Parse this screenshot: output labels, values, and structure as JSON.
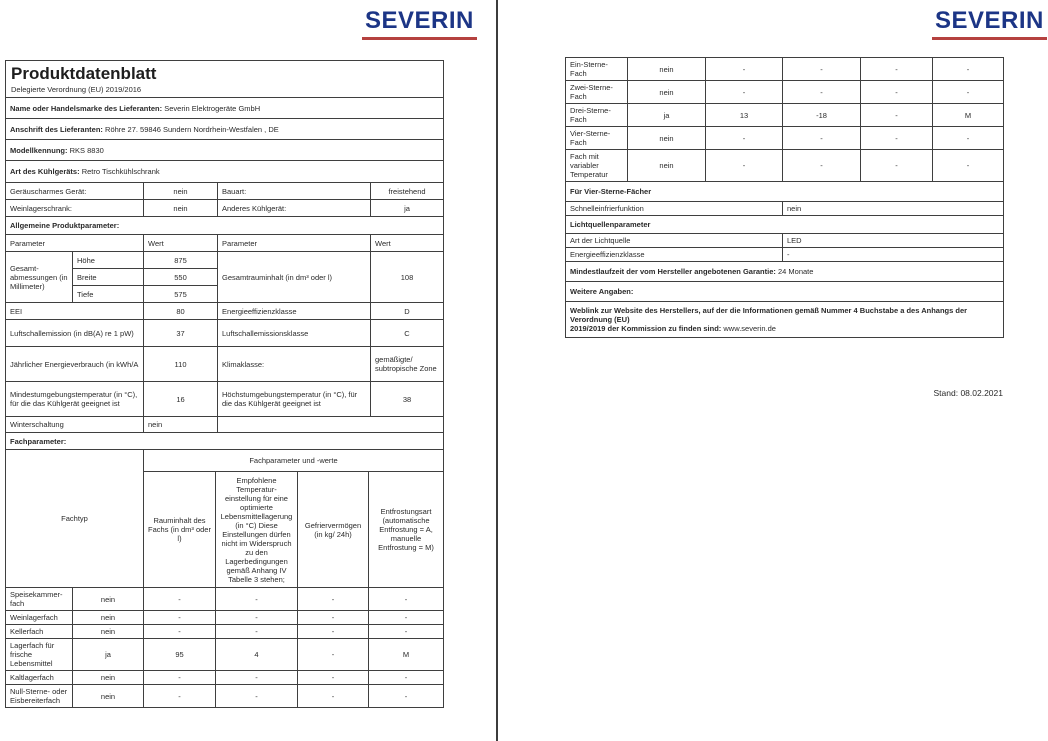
{
  "brand": {
    "logo_text": "SEVERIN",
    "logo_color": "#1c3586",
    "underline_color": "#b5413f"
  },
  "page_left": {
    "title": "Produktdatenblatt",
    "subtitle": "Delegierte Verordnung (EU) 2019/2016",
    "info_rows": [
      {
        "label": "Name oder Handelsmarke des Lieferanten:",
        "value": "Severin Elektrogeräte GmbH"
      },
      {
        "label": "Anschrift des Lieferanten:",
        "value": "Röhre 27. 59846 Sundern Nordrhein-Westfalen , DE"
      },
      {
        "label": "Modellkennung:",
        "value": "RKS 8830"
      },
      {
        "label": "Art des Kühlgeräts:",
        "value": "Retro Tischkühlschrank"
      }
    ],
    "props": {
      "rows": [
        [
          "Geräuscharmes Gerät:",
          "nein",
          "Bauart:",
          "freistehend"
        ],
        [
          "Weinlagerschrank:",
          "nein",
          "Anderes Kühlgerät:",
          "ja"
        ]
      ]
    },
    "general_title": "Allgemeine Produktparameter:",
    "general": {
      "header": [
        "Parameter",
        "Wert",
        "Parameter",
        "Wert"
      ],
      "dims_label": "Gesamt-abmessungen (in Millimeter)",
      "dims": [
        [
          "Höhe",
          "875"
        ],
        [
          "Breite",
          "550"
        ],
        [
          "Tiefe",
          "575"
        ]
      ],
      "dims_right_label": "Gesamtrauminhalt (in dm³ oder l)",
      "dims_right_value": "108",
      "rows": [
        [
          "EEI",
          "80",
          "Energieeffizienzklasse",
          "D"
        ],
        [
          "Luftschallemission (in dB(A) re 1 pW)",
          "37",
          "Luftschallemissionsklasse",
          "C"
        ],
        [
          "Jährlicher Energieverbrauch (in kWh/A",
          "110",
          "Klimaklasse:",
          "gemäßigte/ subtropische Zone"
        ],
        [
          "Mindestumgebungstemperatur (in °C), für die das Kühlgerät geeignet ist",
          "16",
          "Höchstumgebungstemperatur (in °C), für die das Kühlgerät geeignet ist",
          "38"
        ]
      ],
      "winter_label": "Winterschaltung",
      "winter_value": "nein"
    },
    "fach_title": "Fachparameter:",
    "fach": {
      "fachtyp_header": "Fachtyp",
      "group_header": "Fachparameter und -werte",
      "col_headers": [
        "Rauminhalt des Fachs (in dm³ oder l)",
        "Empfohlene Temperatur-einstellung für eine optimierte Lebensmittellagerung (in °C) Diese Einstellungen dürfen nicht im Widerspruch zu den Lagerbedingungen gemäß Anhang IV Tabelle 3 stehen;",
        "Gefriervermögen (in kg/ 24h)",
        "Entfrostungsart (automatische Entfrostung = A, manuelle Entfrostung = M)"
      ],
      "rows": [
        [
          "Speisekammer-fach",
          "nein",
          "-",
          "-",
          "-",
          "-"
        ],
        [
          "Weinlagerfach",
          "nein",
          "-",
          "-",
          "-",
          "-"
        ],
        [
          "Kellerfach",
          "nein",
          "-",
          "-",
          "-",
          "-"
        ],
        [
          "Lagerfach für frische Lebensmittel",
          "ja",
          "95",
          "4",
          "-",
          "M"
        ],
        [
          "Kaltlagerfach",
          "nein",
          "-",
          "-",
          "-",
          "-"
        ],
        [
          "Null-Sterne- oder Eisbereiterfach",
          "nein",
          "-",
          "-",
          "-",
          "-"
        ]
      ]
    }
  },
  "page_right": {
    "fach_rows": [
      [
        "Ein-Sterne-Fach",
        "nein",
        "-",
        "-",
        "-",
        "-"
      ],
      [
        "Zwei-Sterne-Fach",
        "nein",
        "-",
        "-",
        "-",
        "-"
      ],
      [
        "Drei-Sterne-Fach",
        "ja",
        "13",
        "-18",
        "-",
        "M"
      ],
      [
        "Vier-Sterne-Fach",
        "nein",
        "-",
        "-",
        "-",
        "-"
      ],
      [
        "Fach mit variabler Temperatur",
        "nein",
        "-",
        "-",
        "-",
        "-"
      ]
    ],
    "four_star_title": "Für Vier-Sterne-Fächer",
    "four_star_rows": [
      [
        "Schnelleinfrierfunktion",
        "nein"
      ]
    ],
    "light_title": "Lichtquellenparameter",
    "light_rows": [
      [
        "Art der Lichtquelle",
        "LED"
      ],
      [
        "Energieeffizienzklasse",
        "-"
      ]
    ],
    "warranty_label": "Mindestlaufzeit der vom Hersteller angebotenen Garantie:",
    "warranty_value": "24 Monate",
    "more_title": "Weitere Angaben:",
    "weblink_line1": "Weblink zur Website des Herstellers, auf der die Informationen gemäß Nummer 4 Buchstabe a des Anhangs der Verordnung (EU)",
    "weblink_line2": "2019/2019 der Kommission zu finden sind:",
    "weblink_url": "www.severin.de",
    "stand": "Stand: 08.02.2021"
  }
}
